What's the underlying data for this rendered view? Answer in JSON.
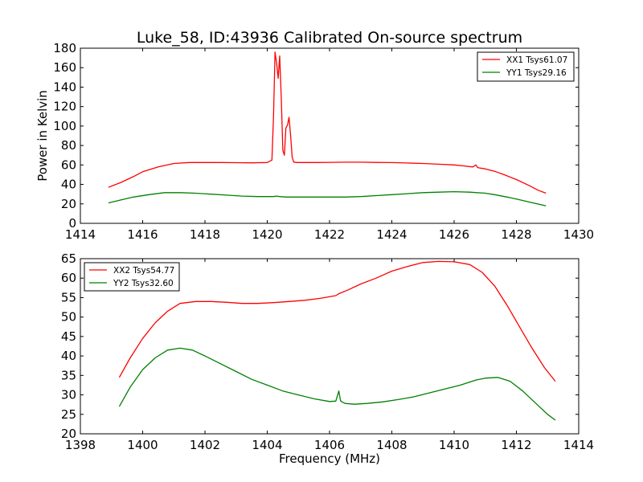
{
  "chart_data": [
    {
      "type": "line",
      "title": "Luke_58, ID:43936 Calibrated On-source spectrum",
      "xlabel": "",
      "ylabel": "Power in Kelvin",
      "xlim": [
        1414,
        1430
      ],
      "ylim": [
        0,
        180
      ],
      "xticks": [
        1414,
        1416,
        1418,
        1420,
        1422,
        1424,
        1426,
        1428,
        1430
      ],
      "yticks": [
        0,
        20,
        40,
        60,
        80,
        100,
        120,
        140,
        160,
        180
      ],
      "grid": false,
      "legend_position": "top-right",
      "series": [
        {
          "name": "XX1 Tsys61.07",
          "color": "#ff0000",
          "x": [
            1414.9,
            1415.3,
            1415.7,
            1416.0,
            1416.5,
            1417.0,
            1417.5,
            1418.0,
            1418.5,
            1419.0,
            1419.5,
            1420.0,
            1420.15,
            1420.2,
            1420.25,
            1420.3,
            1420.35,
            1420.4,
            1420.45,
            1420.5,
            1420.55,
            1420.6,
            1420.65,
            1420.7,
            1420.75,
            1420.8,
            1420.85,
            1420.95,
            1421.2,
            1421.6,
            1422.0,
            1422.5,
            1423.0,
            1423.5,
            1424.0,
            1424.5,
            1425.0,
            1425.5,
            1426.0,
            1426.3,
            1426.6,
            1426.7,
            1426.75,
            1426.8,
            1427.0,
            1427.3,
            1427.6,
            1428.0,
            1428.4,
            1428.7,
            1428.95
          ],
          "y": [
            37,
            42,
            48,
            53,
            58,
            61.5,
            62.5,
            62.5,
            62.5,
            62.3,
            62.2,
            62.5,
            65,
            110,
            176,
            165,
            149,
            172,
            130,
            75,
            70,
            98,
            101,
            109,
            90,
            68,
            63,
            62.5,
            62.5,
            62.5,
            62.7,
            62.8,
            62.8,
            62.6,
            62.4,
            62,
            61.5,
            60.8,
            60,
            59,
            58,
            60,
            57.5,
            57,
            56,
            53.5,
            50,
            45,
            39,
            34,
            31
          ]
        },
        {
          "name": "YY1 Tsys29.16",
          "color": "#008000",
          "x": [
            1414.9,
            1415.3,
            1415.7,
            1416.2,
            1416.7,
            1417.2,
            1417.7,
            1418.2,
            1418.7,
            1419.2,
            1419.7,
            1420.2,
            1420.3,
            1420.4,
            1420.6,
            1421.0,
            1421.5,
            1422.0,
            1422.5,
            1423.0,
            1423.5,
            1424.0,
            1424.5,
            1425.0,
            1425.5,
            1426.0,
            1426.5,
            1427.0,
            1427.3,
            1427.7,
            1428.0,
            1428.4,
            1428.95
          ],
          "y": [
            21,
            24,
            27,
            29.5,
            31.5,
            31.5,
            31,
            30,
            29,
            28,
            27.5,
            27.5,
            28,
            27.5,
            27,
            27,
            27,
            27,
            27,
            27.5,
            28.5,
            29.5,
            30.5,
            31.5,
            32,
            32.5,
            32,
            31,
            29.5,
            27,
            25,
            22,
            18
          ]
        }
      ]
    },
    {
      "type": "line",
      "title": "",
      "xlabel": "Frequency (MHz)",
      "ylabel": "",
      "xlim": [
        1398,
        1414
      ],
      "ylim": [
        20,
        65
      ],
      "xticks": [
        1398,
        1400,
        1402,
        1404,
        1406,
        1408,
        1410,
        1412,
        1414
      ],
      "yticks": [
        20,
        25,
        30,
        35,
        40,
        45,
        50,
        55,
        60,
        65
      ],
      "grid": false,
      "legend_position": "top-left",
      "series": [
        {
          "name": "XX2 Tsys54.77",
          "color": "#ff0000",
          "x": [
            1399.25,
            1399.6,
            1400.0,
            1400.4,
            1400.8,
            1401.2,
            1401.7,
            1402.2,
            1402.7,
            1403.2,
            1403.7,
            1404.2,
            1404.7,
            1405.2,
            1405.7,
            1406.2,
            1406.3,
            1406.6,
            1407.0,
            1407.5,
            1408.0,
            1408.5,
            1409.0,
            1409.5,
            1410.0,
            1410.5,
            1410.9,
            1411.3,
            1411.7,
            1412.1,
            1412.5,
            1412.9,
            1413.25
          ],
          "y": [
            34.5,
            39.5,
            44.5,
            48.5,
            51.5,
            53.5,
            54,
            54,
            53.8,
            53.5,
            53.5,
            53.7,
            54,
            54.3,
            54.8,
            55.5,
            56,
            57,
            58.5,
            60,
            61.8,
            63,
            64,
            64.3,
            64.2,
            63.5,
            61.5,
            58,
            53,
            47.5,
            42,
            37,
            33.5
          ]
        },
        {
          "name": "YY2 Tsys32.60",
          "color": "#008000",
          "x": [
            1399.25,
            1399.6,
            1400.0,
            1400.4,
            1400.8,
            1401.2,
            1401.6,
            1402.0,
            1402.5,
            1403.0,
            1403.5,
            1404.0,
            1404.5,
            1405.0,
            1405.5,
            1406.0,
            1406.2,
            1406.3,
            1406.35,
            1406.4,
            1406.5,
            1406.8,
            1407.2,
            1407.7,
            1408.2,
            1408.7,
            1409.2,
            1409.7,
            1410.2,
            1410.7,
            1411.0,
            1411.4,
            1411.8,
            1412.2,
            1412.6,
            1413.0,
            1413.25
          ],
          "y": [
            27,
            32,
            36.5,
            39.5,
            41.5,
            42,
            41.5,
            40,
            38,
            36,
            34,
            32.5,
            31,
            30,
            29,
            28.3,
            28.4,
            31,
            28.5,
            28.2,
            27.8,
            27.6,
            27.8,
            28.2,
            28.8,
            29.5,
            30.5,
            31.5,
            32.5,
            33.8,
            34.3,
            34.5,
            33.5,
            31,
            28,
            25,
            23.5
          ]
        }
      ]
    }
  ]
}
